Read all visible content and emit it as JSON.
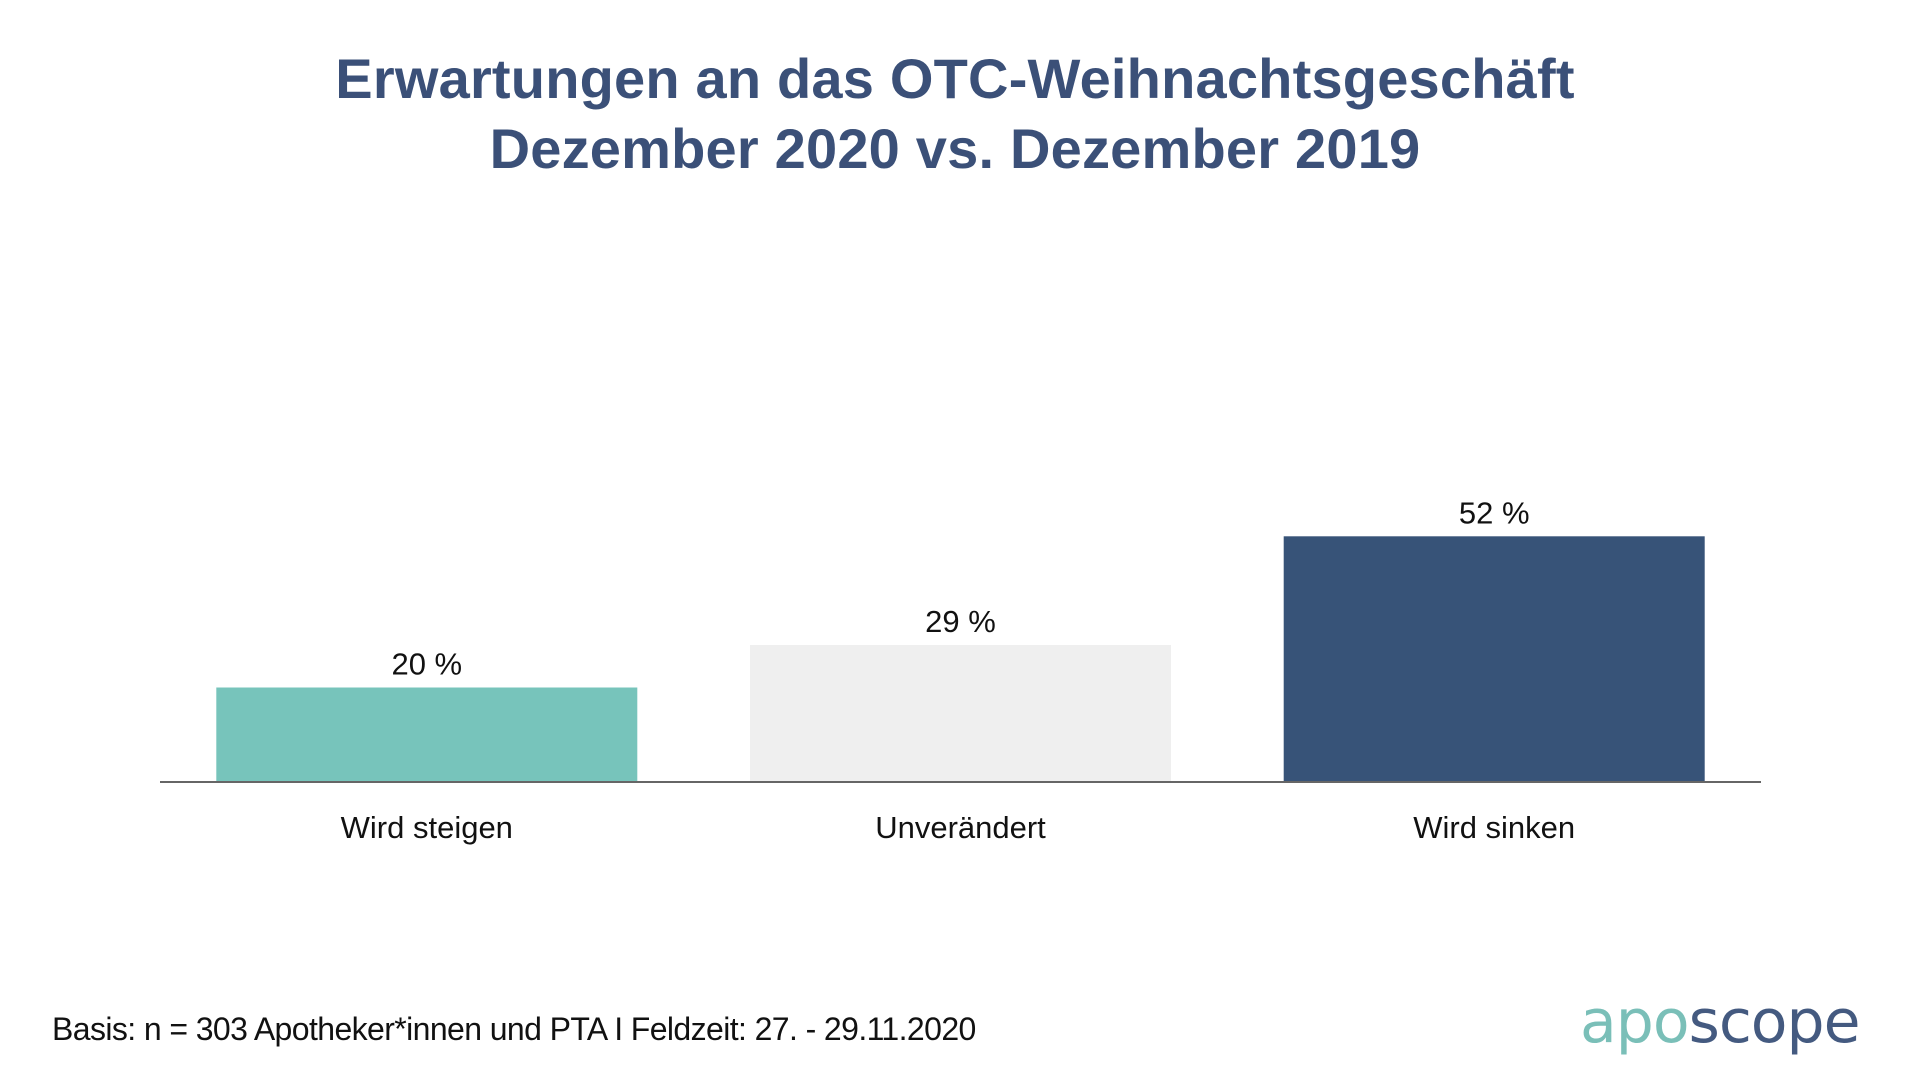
{
  "title": {
    "line1": "Erwartungen an das OTC-Weihnachtsgeschäft",
    "line2": "Dezember 2020 vs. Dezember 2019",
    "color": "#3b5078"
  },
  "chart_data": {
    "type": "bar",
    "title": "Erwartungen an das OTC-Weihnachtsgeschäft Dezember 2020 vs. Dezember 2019",
    "xlabel": "",
    "ylabel": "",
    "categories": [
      "Wird steigen",
      "Unverändert",
      "Wird sinken"
    ],
    "values": [
      20,
      29,
      52
    ],
    "value_labels": [
      "20 %",
      "29 %",
      "52 %"
    ],
    "unit": "%",
    "colors": [
      "#77c4bb",
      "#efefef",
      "#375378"
    ],
    "ylim": [
      0,
      80
    ],
    "grid": false,
    "legend": "none",
    "axis_line_color": "#666666"
  },
  "footnote": "Basis: n = 303 Apotheker*innen und PTA I Feldzeit: 27. - 29.11.2020",
  "logo": {
    "part1": "apo",
    "part2": "scope",
    "color1": "#7abfb8",
    "color2": "#445a80"
  }
}
